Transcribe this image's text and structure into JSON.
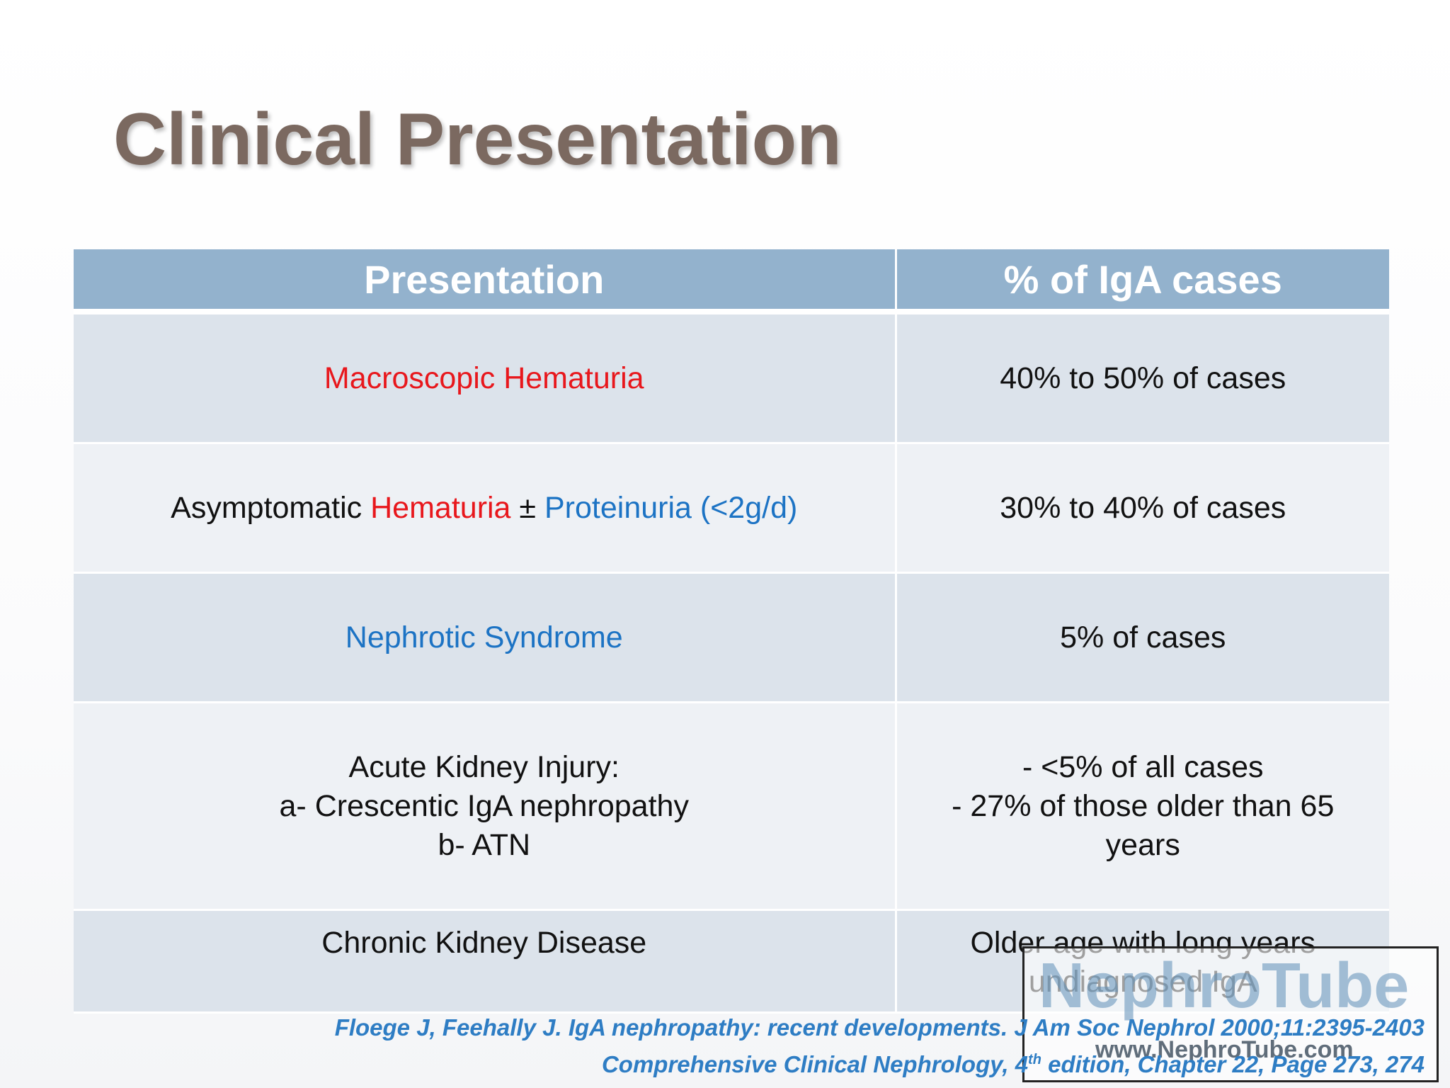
{
  "slide": {
    "title": "Clinical Presentation"
  },
  "table": {
    "headers": [
      "Presentation",
      "% of IgA cases"
    ],
    "rows": [
      {
        "presentation": "Macroscopic Hematuria",
        "percent": "40% to 50% of cases"
      },
      {
        "presentation_parts": [
          "Asymptomatic ",
          "Hematuria",
          " ± ",
          "Proteinuria (<2g/d)"
        ],
        "percent": "30% to 40% of cases"
      },
      {
        "presentation": "Nephrotic Syndrome",
        "percent": "5% of cases"
      },
      {
        "presentation_lines": [
          "Acute Kidney Injury:",
          "a- Crescentic IgA nephropathy",
          "b- ATN"
        ],
        "percent_lines": [
          "- <5% of all cases",
          "- 27% of those older than 65",
          "years"
        ]
      },
      {
        "presentation": "Chronic Kidney Disease",
        "percent_lines": [
          "Older age with long years",
          "undiagnosed IgA"
        ]
      }
    ]
  },
  "citations": {
    "line1": "Floege J, Feehally J. IgA nephropathy: recent developments. J Am Soc Nephrol 2000;11:2395-2403",
    "line2_before_sup": "Comprehensive Clinical Nephrology, 4",
    "line2_sup": "th",
    "line2_after_sup": " edition, Chapter 22, Page 273, 274"
  },
  "watermark": {
    "logo_text": "NephroTube",
    "url": "www.NephroTube.com"
  },
  "colors": {
    "title": "#7b6960",
    "header_bg": "#93b2cd",
    "row_shade": "#dce3eb",
    "row_light": "#eef1f5",
    "red": "#e8171c",
    "blue": "#1c73c4",
    "green": "#1aa958",
    "citation": "#2e7dc4"
  }
}
